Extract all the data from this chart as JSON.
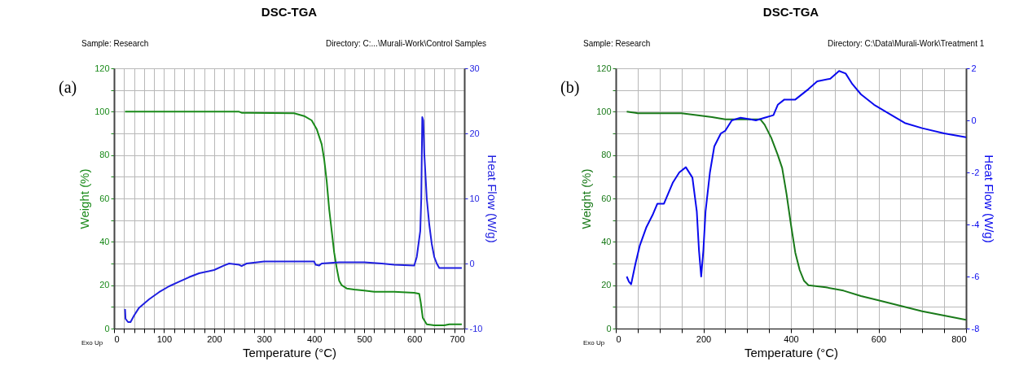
{
  "chart_data": [
    {
      "type": "line",
      "title": "DSC-TGA",
      "xlabel": "Temperature (°C)",
      "ylabel": "Weight (%)",
      "y2label": "Heat Flow (W/g)",
      "annotations": [
        "Sample: Research",
        "Directory: C:...\\Murali-Work\\Control Samples",
        "Exo Up",
        "(a)"
      ],
      "xlim": [
        0,
        700
      ],
      "xticks": [
        0,
        {
          "value": 20,
          "label": null
        },
        {
          "value": 40,
          "label": null
        },
        {
          "value": 60,
          "label": null
        },
        {
          "value": 80,
          "label": null
        },
        100,
        {
          "value": 120,
          "label": null
        },
        {
          "value": 140,
          "label": null
        },
        {
          "value": 160,
          "label": null
        },
        {
          "value": 180,
          "label": null
        },
        200,
        {
          "value": 220,
          "label": null
        },
        {
          "value": 240,
          "label": null
        },
        {
          "value": 260,
          "label": null
        },
        {
          "value": 280,
          "label": null
        },
        300,
        {
          "value": 320,
          "label": null
        },
        {
          "value": 340,
          "label": null
        },
        {
          "value": 360,
          "label": null
        },
        {
          "value": 380,
          "label": null
        },
        400,
        {
          "value": 420,
          "label": null
        },
        {
          "value": 440,
          "label": null
        },
        {
          "value": 460,
          "label": null
        },
        {
          "value": 480,
          "label": null
        },
        500,
        {
          "value": 520,
          "label": null
        },
        {
          "value": 540,
          "label": null
        },
        {
          "value": 560,
          "label": null
        },
        {
          "value": 580,
          "label": null
        },
        600,
        {
          "value": 620,
          "label": null
        },
        {
          "value": 640,
          "label": null
        },
        {
          "value": 660,
          "label": null
        },
        {
          "value": 680,
          "label": null
        },
        700
      ],
      "ylim": [
        0,
        120
      ],
      "yticks": [
        0,
        {
          "value": 10,
          "label": null
        },
        20,
        {
          "value": 30,
          "label": null
        },
        40,
        {
          "value": 50,
          "label": null
        },
        60,
        {
          "value": 70,
          "label": null
        },
        80,
        {
          "value": 90,
          "label": null
        },
        100,
        {
          "value": 110,
          "label": null
        },
        120
      ],
      "y2lim": [
        -10,
        30
      ],
      "y2ticks": [
        -10,
        0,
        10,
        20,
        30
      ],
      "grid": true,
      "series": [
        {
          "color": "#1a8a1a",
          "x": [
            22,
            250,
            255,
            270,
            360,
            380,
            395,
            405,
            415,
            420,
            425,
            430,
            435,
            440,
            445,
            450,
            455,
            465,
            480,
            500,
            520,
            560,
            600,
            610,
            613,
            617,
            625,
            640,
            660,
            670,
            695
          ],
          "values": [
            100,
            100,
            99.5,
            99.5,
            99.3,
            98,
            96,
            92,
            85,
            78,
            68,
            55,
            45,
            35,
            28,
            22,
            20,
            18.5,
            18,
            17.5,
            17,
            17,
            16.5,
            16,
            12,
            5,
            2,
            1.5,
            1.5,
            2,
            2
          ]
        },
        {
          "color": "#1f1fe0",
          "axis": "y2",
          "x": [
            22,
            23,
            28,
            33,
            40,
            50,
            70,
            90,
            110,
            130,
            150,
            170,
            200,
            220,
            230,
            250,
            255,
            265,
            300,
            400,
            403,
            410,
            415,
            450,
            500,
            535,
            560,
            600,
            605,
            612,
            614,
            616,
            618,
            620,
            625,
            630,
            635,
            640,
            645,
            650,
            695
          ],
          "values": [
            -7,
            -8.5,
            -9,
            -9,
            -8,
            -6.8,
            -5.5,
            -4.4,
            -3.5,
            -2.8,
            -2.1,
            -1.5,
            -1,
            -0.3,
            0,
            -0.2,
            -0.4,
            0,
            0.3,
            0.3,
            -0.2,
            -0.3,
            0,
            0.2,
            0.2,
            0,
            -0.2,
            -0.3,
            1,
            5,
            10,
            22.5,
            22,
            17,
            10,
            6,
            3,
            1,
            0,
            -0.7,
            -0.7
          ]
        }
      ]
    },
    {
      "type": "line",
      "title": "DSC-TGA",
      "xlabel": "Temperature (°C)",
      "ylabel": "Weight (%)",
      "y2label": "Heat Flow (W/g)",
      "annotations": [
        "Sample: Research",
        "Directory: C:\\Data\\Murali-Work\\Treatment 1",
        "Exo Up",
        "(b)"
      ],
      "xlim": [
        0,
        800
      ],
      "xticks": [
        0,
        {
          "value": 50,
          "label": null
        },
        {
          "value": 100,
          "label": null
        },
        {
          "value": 150,
          "label": null
        },
        200,
        {
          "value": 250,
          "label": null
        },
        {
          "value": 300,
          "label": null
        },
        {
          "value": 350,
          "label": null
        },
        400,
        {
          "value": 450,
          "label": null
        },
        {
          "value": 500,
          "label": null
        },
        {
          "value": 550,
          "label": null
        },
        600,
        {
          "value": 650,
          "label": null
        },
        {
          "value": 700,
          "label": null
        },
        {
          "value": 750,
          "label": null
        },
        800
      ],
      "ylim": [
        0,
        120
      ],
      "yticks": [
        0,
        {
          "value": 10,
          "label": null
        },
        20,
        {
          "value": 30,
          "label": null
        },
        40,
        {
          "value": 50,
          "label": null
        },
        60,
        {
          "value": 70,
          "label": null
        },
        80,
        {
          "value": 90,
          "label": null
        },
        100,
        {
          "value": 110,
          "label": null
        },
        120
      ],
      "y2lim": [
        -8,
        2
      ],
      "y2ticks": [
        -8,
        -6,
        -4,
        -2,
        0,
        2
      ],
      "grid": true,
      "series": [
        {
          "color": "#1a7a1a",
          "x": [
            25,
            45,
            50,
            150,
            180,
            220,
            250,
            330,
            340,
            355,
            370,
            380,
            390,
            400,
            410,
            420,
            430,
            440,
            480,
            520,
            560,
            600,
            650,
            700,
            750,
            800
          ],
          "values": [
            100,
            99.5,
            99.3,
            99.3,
            98.5,
            97.5,
            96.5,
            96.5,
            94,
            88,
            80,
            74,
            62,
            48,
            35,
            27,
            22,
            20,
            19,
            17.5,
            15,
            13,
            10.5,
            8,
            6,
            4
          ]
        },
        {
          "color": "#0a0aee",
          "axis": "y2",
          "x": [
            25,
            30,
            35,
            40,
            45,
            55,
            70,
            85,
            95,
            110,
            130,
            145,
            160,
            175,
            185,
            190,
            195,
            200,
            205,
            215,
            225,
            240,
            250,
            265,
            285,
            305,
            320,
            340,
            360,
            370,
            385,
            410,
            440,
            460,
            490,
            510,
            525,
            540,
            560,
            590,
            630,
            660,
            700,
            750,
            800
          ],
          "values": [
            -6,
            -6.2,
            -6.3,
            -5.9,
            -5.5,
            -4.8,
            -4.1,
            -3.6,
            -3.2,
            -3.2,
            -2.4,
            -2,
            -1.8,
            -2.2,
            -3.5,
            -5,
            -6,
            -5,
            -3.5,
            -2,
            -1,
            -0.5,
            -0.4,
            0,
            0.1,
            0.05,
            0,
            0.1,
            0.2,
            0.6,
            0.8,
            0.8,
            1.2,
            1.5,
            1.6,
            1.9,
            1.8,
            1.4,
            1,
            0.6,
            0.2,
            -0.1,
            -0.3,
            -0.5,
            -0.65
          ]
        }
      ]
    }
  ]
}
